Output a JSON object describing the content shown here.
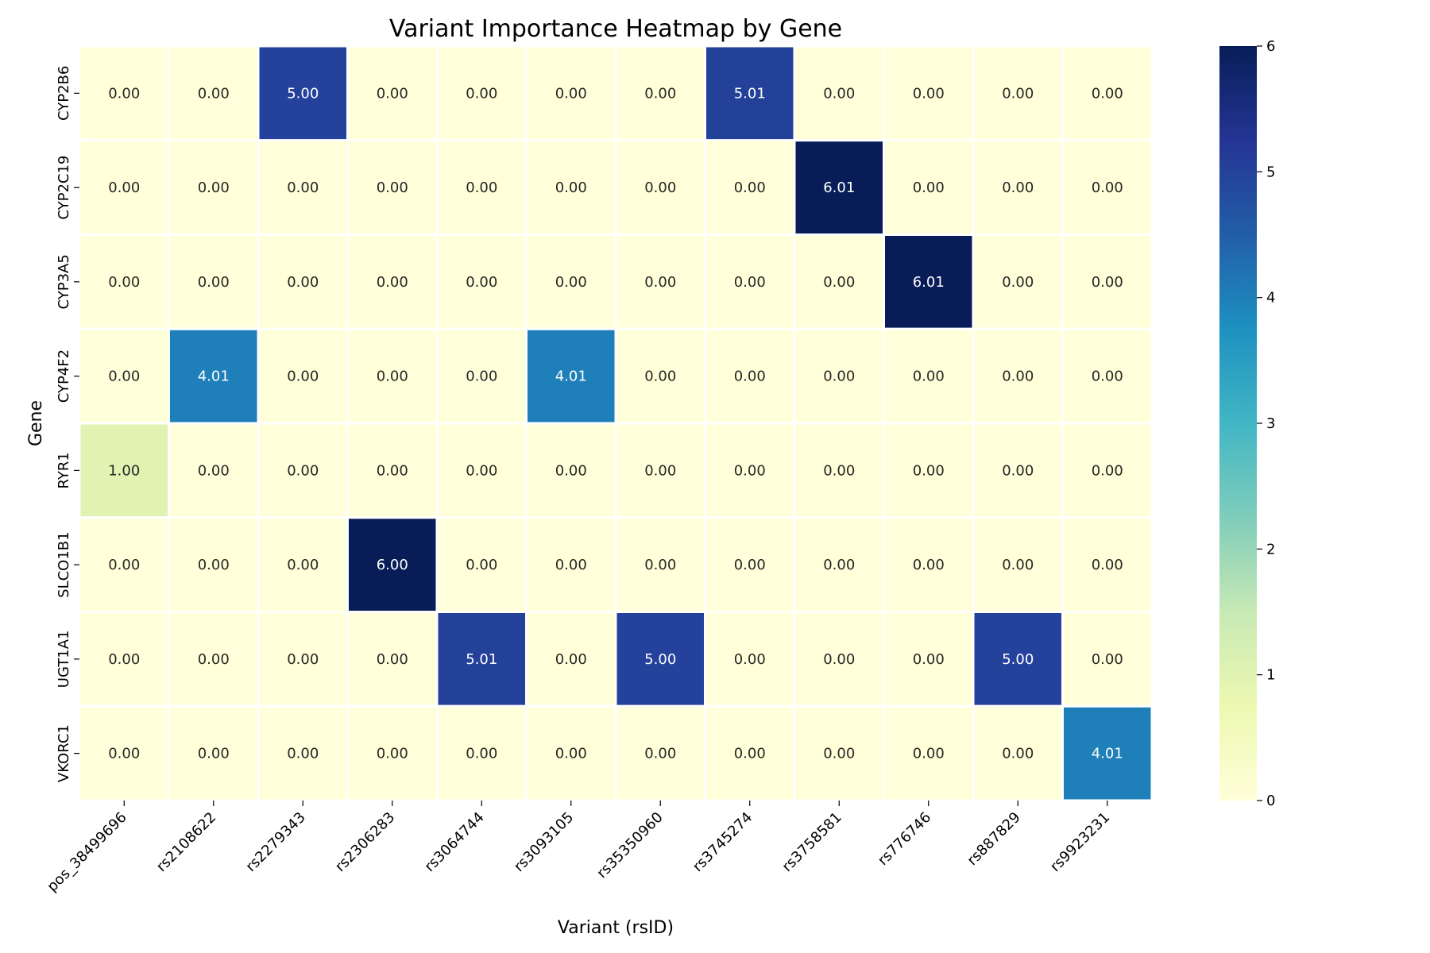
{
  "chart_data": {
    "type": "heatmap",
    "title": "Variant Importance Heatmap by Gene",
    "xlabel": "Variant (rsID)",
    "ylabel": "Gene",
    "x_categories": [
      "pos_38499696",
      "rs2108622",
      "rs2279343",
      "rs2306283",
      "rs3064744",
      "rs3093105",
      "rs35350960",
      "rs3745274",
      "rs3758581",
      "rs776746",
      "rs887829",
      "rs9923231"
    ],
    "y_categories": [
      "CYP2B6",
      "CYP2C19",
      "CYP3A5",
      "CYP4F2",
      "RYR1",
      "SLCO1B1",
      "UGT1A1",
      "VKORC1"
    ],
    "values": [
      [
        0.0,
        0.0,
        5.0,
        0.0,
        0.0,
        0.0,
        0.0,
        5.01,
        0.0,
        0.0,
        0.0,
        0.0
      ],
      [
        0.0,
        0.0,
        0.0,
        0.0,
        0.0,
        0.0,
        0.0,
        0.0,
        6.01,
        0.0,
        0.0,
        0.0
      ],
      [
        0.0,
        0.0,
        0.0,
        0.0,
        0.0,
        0.0,
        0.0,
        0.0,
        0.0,
        6.01,
        0.0,
        0.0
      ],
      [
        0.0,
        4.01,
        0.0,
        0.0,
        0.0,
        4.01,
        0.0,
        0.0,
        0.0,
        0.0,
        0.0,
        0.0
      ],
      [
        1.0,
        0.0,
        0.0,
        0.0,
        0.0,
        0.0,
        0.0,
        0.0,
        0.0,
        0.0,
        0.0,
        0.0
      ],
      [
        0.0,
        0.0,
        0.0,
        6.0,
        0.0,
        0.0,
        0.0,
        0.0,
        0.0,
        0.0,
        0.0,
        0.0
      ],
      [
        0.0,
        0.0,
        0.0,
        0.0,
        5.01,
        0.0,
        5.0,
        0.0,
        0.0,
        0.0,
        5.0,
        0.0
      ],
      [
        0.0,
        0.0,
        0.0,
        0.0,
        0.0,
        0.0,
        0.0,
        0.0,
        0.0,
        0.0,
        0.0,
        4.01
      ]
    ],
    "colorbar": {
      "min": 0,
      "max": 6,
      "ticks": [
        0,
        1,
        2,
        3,
        4,
        5,
        6
      ]
    },
    "colormap": "YlGnBu",
    "annotations": true,
    "value_format": "0.00"
  }
}
